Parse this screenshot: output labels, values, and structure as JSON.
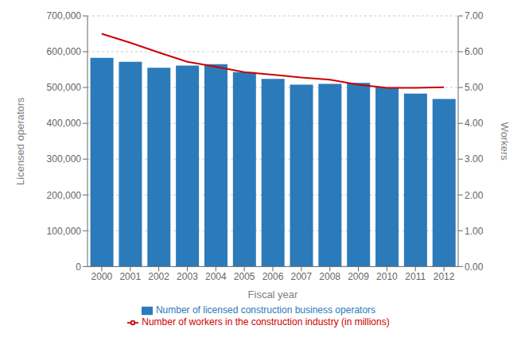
{
  "chart_data": {
    "type": "bar",
    "xlabel": "Fiscal year",
    "ylabel": "Licensed operators",
    "y2label": "Workers",
    "categories": [
      "2000",
      "2001",
      "2002",
      "2003",
      "2004",
      "2005",
      "2006",
      "2007",
      "2008",
      "2009",
      "2010",
      "2011",
      "2012"
    ],
    "series": [
      {
        "name": "Number of licensed construction business operators",
        "type": "bar",
        "color": "#2b7bba",
        "values": [
          583000,
          572000,
          555000,
          561000,
          565000,
          543000,
          524000,
          508000,
          510000,
          513000,
          500000,
          483000,
          468000
        ]
      },
      {
        "name": "Number of workers in the construction industry (in millions)",
        "type": "line",
        "axis": "y2",
        "color": "#cc0000",
        "values": [
          6.5,
          6.25,
          5.98,
          5.72,
          5.58,
          5.43,
          5.36,
          5.28,
          5.22,
          5.08,
          4.99,
          4.99,
          5.01
        ]
      }
    ],
    "ylim": [
      0,
      700000
    ],
    "yticks": [
      0,
      {
        "value": 100000,
        "label": "100,000"
      },
      {
        "value": 200000,
        "label": "200,000"
      },
      {
        "value": 300000,
        "label": "300,000"
      },
      {
        "value": 400000,
        "label": "400,000"
      },
      {
        "value": 500000,
        "label": "500,000"
      },
      {
        "value": 600000,
        "label": "600,000"
      },
      {
        "value": 700000,
        "label": "700,000"
      }
    ],
    "y2lim": [
      0,
      7
    ],
    "y2ticks": [
      {
        "value": 0,
        "label": "0.00"
      },
      {
        "value": 1,
        "label": "1.00"
      },
      {
        "value": 2,
        "label": "2.00"
      },
      {
        "value": 3,
        "label": "3.00"
      },
      {
        "value": 4,
        "label": "4.00"
      },
      {
        "value": 5,
        "label": "5.00"
      },
      {
        "value": 6,
        "label": "6.00"
      },
      {
        "value": 7,
        "label": "7.00"
      }
    ],
    "grid": true,
    "legend": "bottom"
  }
}
